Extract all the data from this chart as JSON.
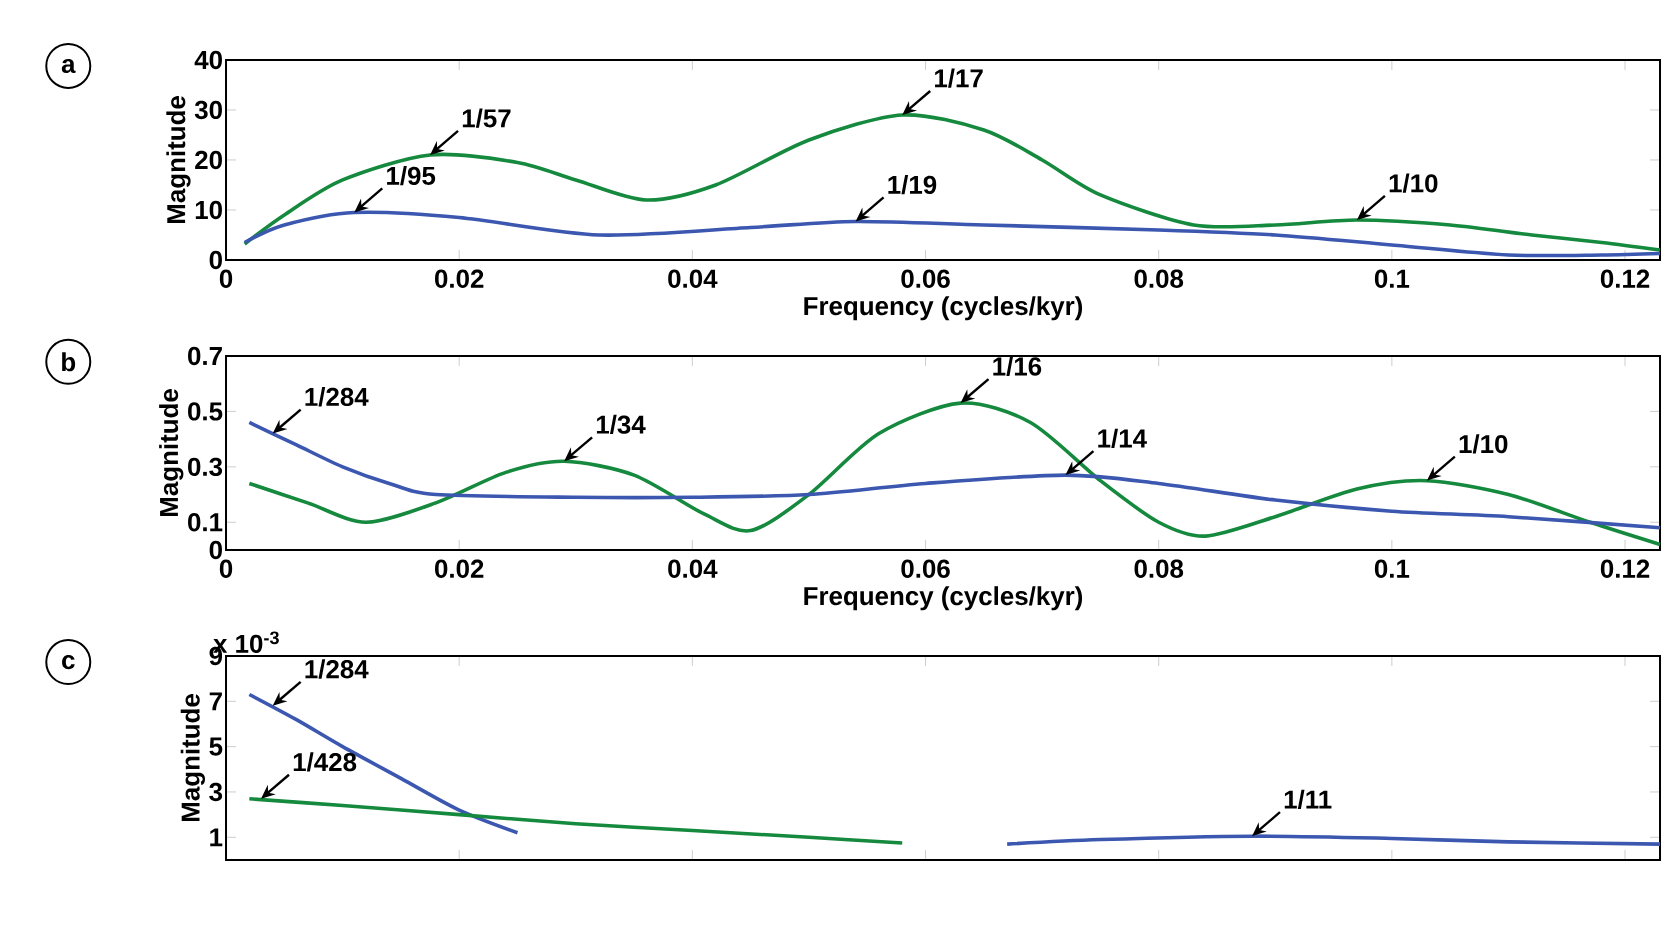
{
  "chart_data": [
    {
      "type": "line",
      "title": "a",
      "xlabel": "Frequency (cycles/kyr)",
      "ylabel": "Magnitude",
      "xlim": [
        0,
        0.123
      ],
      "ylim": [
        0,
        40
      ],
      "xticks": [
        0,
        0.02,
        0.04,
        0.06,
        0.08,
        0.1,
        0.12
      ],
      "yticks": [
        0,
        10,
        20,
        30,
        40
      ],
      "series": [
        {
          "color": "#15893d",
          "x": [
            0.0016,
            0.005,
            0.01,
            0.0175,
            0.025,
            0.03,
            0.036,
            0.042,
            0.05,
            0.058,
            0.065,
            0.07,
            0.075,
            0.083,
            0.09,
            0.097,
            0.105,
            0.112,
            0.118,
            0.123
          ],
          "values": [
            3.2,
            9,
            16,
            21,
            19.5,
            16,
            12,
            15,
            24,
            29,
            26,
            20,
            13,
            7,
            7,
            8,
            7,
            5,
            3.5,
            2
          ]
        },
        {
          "color": "#3b57b0",
          "x": [
            0.0016,
            0.005,
            0.011,
            0.02,
            0.032,
            0.045,
            0.054,
            0.065,
            0.08,
            0.09,
            0.1,
            0.11,
            0.118,
            0.123
          ],
          "values": [
            3.5,
            7,
            9.5,
            8.5,
            5,
            6.5,
            7.7,
            7,
            6,
            5,
            3,
            1,
            1,
            1.3
          ]
        }
      ],
      "annotations": [
        {
          "text": "1/95",
          "x": 0.011,
          "y": 9.5
        },
        {
          "text": "1/57",
          "x": 0.0175,
          "y": 21
        },
        {
          "text": "1/17",
          "x": 0.058,
          "y": 29
        },
        {
          "text": "1/19",
          "x": 0.054,
          "y": 7.7
        },
        {
          "text": "1/10",
          "x": 0.097,
          "y": 8
        }
      ]
    },
    {
      "type": "line",
      "title": "b",
      "xlabel": "Frequency (cycles/kyr)",
      "ylabel": "Magnitude",
      "xlim": [
        0,
        0.123
      ],
      "ylim": [
        0,
        0.7
      ],
      "xticks": [
        0,
        0.02,
        0.04,
        0.06,
        0.08,
        0.1,
        0.12
      ],
      "yticks": [
        0,
        0.1,
        0.3,
        0.5,
        0.7
      ],
      "series": [
        {
          "color": "#15893d",
          "x": [
            0.002,
            0.007,
            0.012,
            0.018,
            0.024,
            0.029,
            0.035,
            0.041,
            0.045,
            0.05,
            0.056,
            0.063,
            0.069,
            0.075,
            0.08,
            0.084,
            0.09,
            0.097,
            0.103,
            0.11,
            0.117,
            0.123
          ],
          "values": [
            0.24,
            0.17,
            0.1,
            0.17,
            0.28,
            0.32,
            0.27,
            0.13,
            0.07,
            0.2,
            0.42,
            0.53,
            0.46,
            0.25,
            0.1,
            0.05,
            0.12,
            0.22,
            0.25,
            0.2,
            0.1,
            0.02
          ]
        },
        {
          "color": "#3b57b0",
          "x": [
            0.002,
            0.006,
            0.01,
            0.014,
            0.018,
            0.03,
            0.04,
            0.05,
            0.06,
            0.072,
            0.08,
            0.09,
            0.1,
            0.11,
            0.123
          ],
          "values": [
            0.46,
            0.38,
            0.3,
            0.24,
            0.2,
            0.19,
            0.19,
            0.2,
            0.24,
            0.27,
            0.24,
            0.18,
            0.14,
            0.12,
            0.08
          ]
        }
      ],
      "annotations": [
        {
          "text": "1/284",
          "x": 0.004,
          "y": 0.42
        },
        {
          "text": "1/34",
          "x": 0.029,
          "y": 0.32
        },
        {
          "text": "1/16",
          "x": 0.063,
          "y": 0.53
        },
        {
          "text": "1/14",
          "x": 0.072,
          "y": 0.27
        },
        {
          "text": "1/10",
          "x": 0.103,
          "y": 0.25
        }
      ]
    },
    {
      "type": "line",
      "title": "c",
      "ylabel": "Magnitude",
      "tick_labels": "y",
      "xlim": [
        0,
        0.123
      ],
      "ylim": [
        0,
        9
      ],
      "xticks": [
        0,
        0.02,
        0.04,
        0.06,
        0.08,
        0.1,
        0.12
      ],
      "yticks": [
        1,
        3,
        5,
        7,
        9
      ],
      "series": [
        {
          "color": "#3b57b0",
          "x": [
            0.002,
            0.006,
            0.01,
            0.015,
            0.02,
            0.025,
            0.03,
            0.04,
            0.05,
            0.06,
            0.067,
            0.075,
            0.088,
            0.1,
            0.11,
            0.123
          ],
          "values": [
            7.3,
            6.2,
            5,
            3.6,
            2.2,
            1.2,
            null,
            null,
            null,
            null,
            0.7,
            0.9,
            1.05,
            0.95,
            0.8,
            0.7
          ]
        },
        {
          "color": "#15893d",
          "x": [
            0.002,
            0.01,
            0.02,
            0.03,
            0.04,
            0.05,
            0.058
          ],
          "values": [
            2.7,
            2.4,
            2.0,
            1.6,
            1.3,
            1.0,
            0.75
          ]
        }
      ],
      "annotations": [
        "x 10$^{-3}$",
        {
          "text": "1/284",
          "x": 0.004,
          "y": 6.8
        },
        {
          "text": "1/428",
          "x": 0.003,
          "y": 2.7
        },
        {
          "text": "1/11",
          "x": 0.088,
          "y": 1.05
        }
      ]
    }
  ]
}
